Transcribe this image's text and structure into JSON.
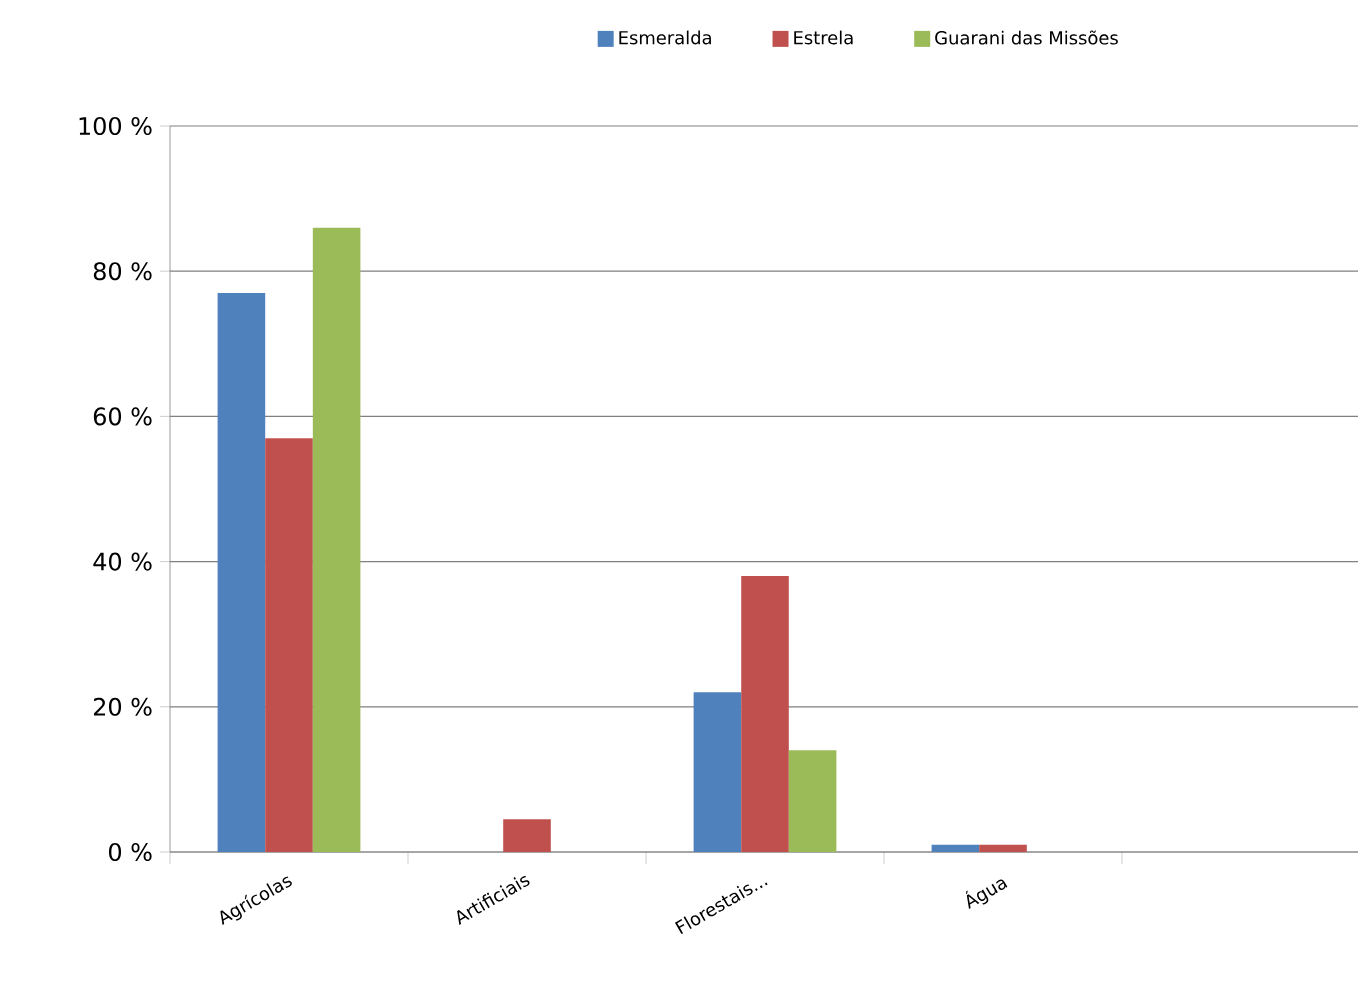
{
  "chart_data": {
    "type": "bar",
    "categories": [
      "Agrícolas",
      "Artificiais",
      "Florestais...",
      "Água",
      null
    ],
    "series": [
      {
        "name": "Esmeralda",
        "color": "#4f81bd",
        "values": [
          77,
          0,
          22,
          1,
          null
        ]
      },
      {
        "name": "Estrela",
        "color": "#c0504d",
        "values": [
          57,
          4.5,
          38,
          1,
          null
        ]
      },
      {
        "name": "Guarani das Missões",
        "color": "#9bbb59",
        "values": [
          86,
          0,
          14,
          0,
          null
        ]
      }
    ],
    "ylim": [
      0,
      100
    ],
    "yticks": [
      {
        "value": 0,
        "label": "0 %"
      },
      {
        "value": 20,
        "label": "20 %"
      },
      {
        "value": 40,
        "label": "40 %"
      },
      {
        "value": 60,
        "label": "60 %"
      },
      {
        "value": 80,
        "label": "80 %"
      },
      {
        "value": 100,
        "label": "100 %"
      }
    ],
    "grid": "y",
    "legend": "top"
  }
}
